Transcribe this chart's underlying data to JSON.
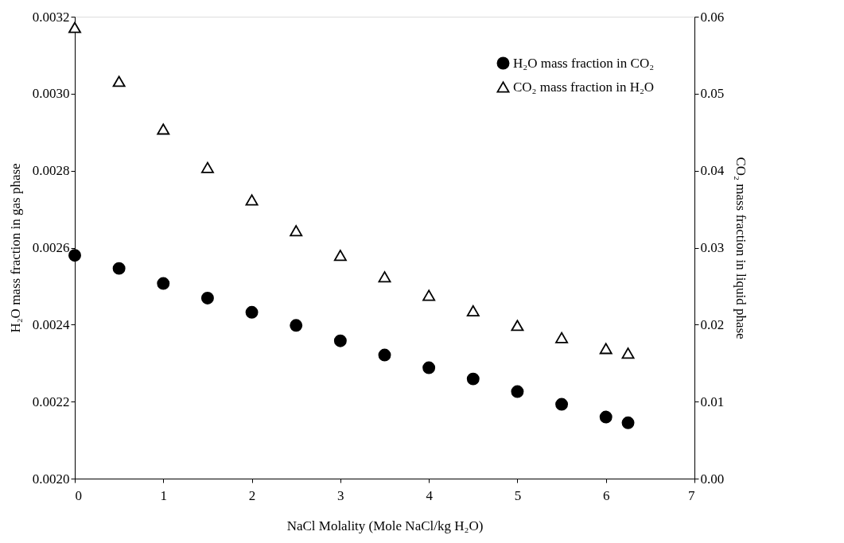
{
  "chart_data": {
    "type": "scatter",
    "xlabel": "NaCl Molality (Mole NaCl/kg H₂O)",
    "ylabel": "H₂O mass fraction in gas phase",
    "y2label": "CO₂ mass fraction in liquid phase",
    "x": [
      0,
      0.5,
      1,
      1.5,
      2,
      2.5,
      3,
      3.5,
      4,
      4.5,
      5,
      5.5,
      6,
      6.25
    ],
    "series": [
      {
        "name": "H₂O mass fraction in CO₂",
        "color": "#000000",
        "marker": "circle",
        "values": [
          0.00258,
          0.002546,
          0.002507,
          0.002469,
          0.002432,
          0.002398,
          0.002358,
          0.002321,
          0.002288,
          0.002259,
          0.002226,
          0.002193,
          0.00216,
          0.002145
        ]
      },
      {
        "name": "CO₂ mass fraction in H₂O",
        "color": "#000000",
        "marker": "triangle",
        "axis": "y2",
        "values": [
          0.0586,
          0.0516,
          0.0454,
          0.0404,
          0.0362,
          0.0322,
          0.029,
          0.0262,
          0.0238,
          0.0218,
          0.0199,
          0.0183,
          0.0169,
          0.0163
        ]
      }
    ],
    "xlim": [
      0,
      7
    ],
    "xticks": [
      0,
      1,
      2,
      3,
      4,
      5,
      6,
      7
    ],
    "ylim": [
      0.002,
      0.0032
    ],
    "yticks": [
      {
        "value": 0.002,
        "label": "0.0020"
      },
      {
        "value": 0.0022,
        "label": "0.0022"
      },
      {
        "value": 0.0024,
        "label": "0.0024"
      },
      {
        "value": 0.0026,
        "label": "0.0026"
      },
      {
        "value": 0.0028,
        "label": "0.0028"
      },
      {
        "value": 0.003,
        "label": "0.0030"
      },
      {
        "value": 0.0032,
        "label": "0.0032"
      }
    ],
    "y2lim": [
      0,
      0.06
    ],
    "y2ticks": [
      {
        "value": 0,
        "label": "0.00"
      },
      {
        "value": 0.01,
        "label": "0.01"
      },
      {
        "value": 0.02,
        "label": "0.02"
      },
      {
        "value": 0.03,
        "label": "0.03"
      },
      {
        "value": 0.04,
        "label": "0.04"
      },
      {
        "value": 0.05,
        "label": "0.05"
      },
      {
        "value": 0.06,
        "label": "0.06"
      }
    ],
    "grid": false,
    "legend": "top right"
  }
}
